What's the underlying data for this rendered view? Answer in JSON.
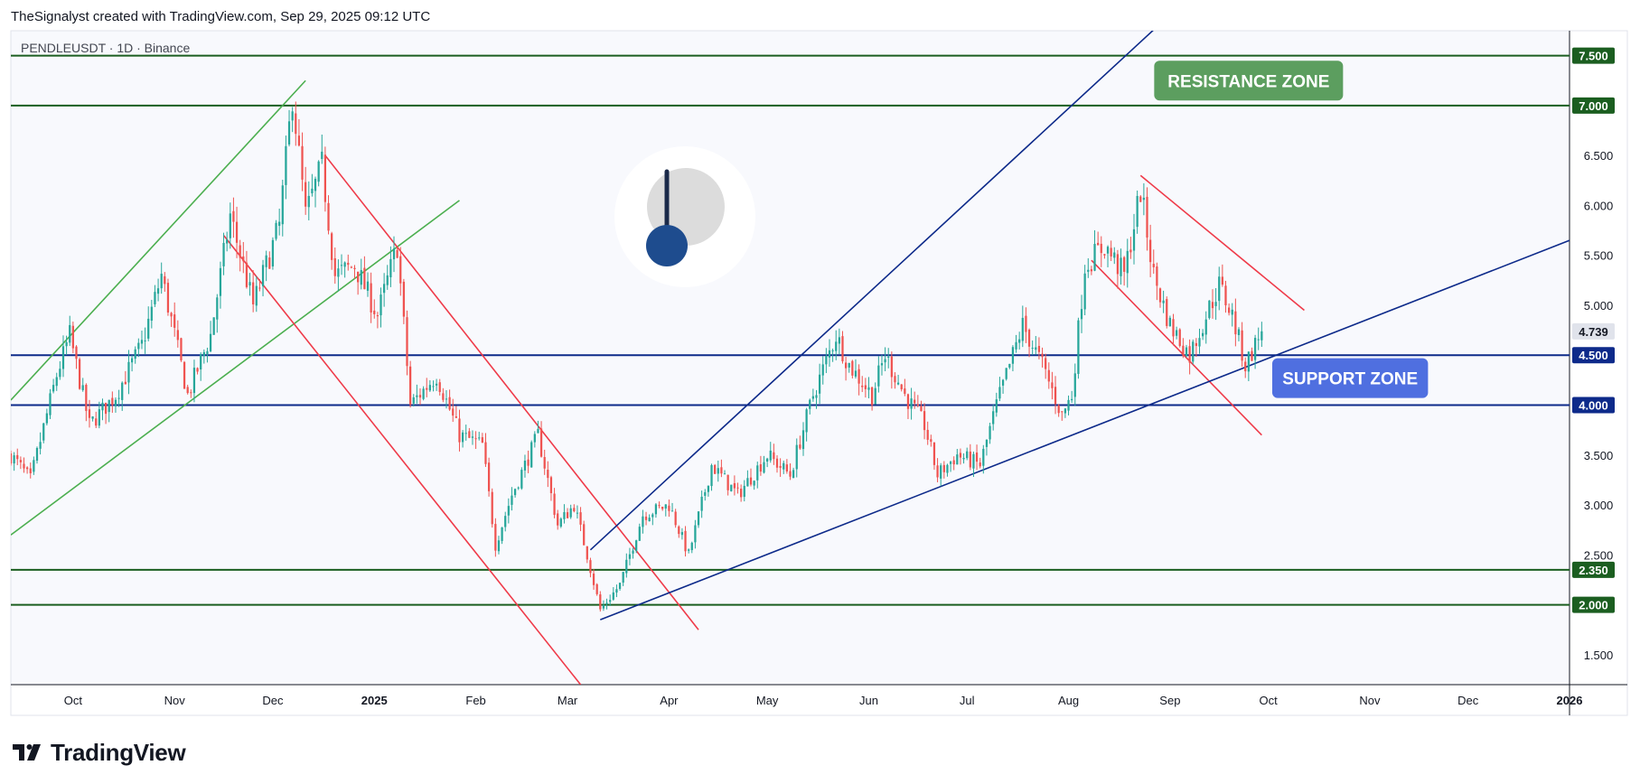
{
  "header": {
    "credit": "TheSignalyst created with TradingView.com, Sep 29, 2025 09:12 UTC"
  },
  "symbol_info": "PENDLEUSDT · 1D · Binance",
  "brand": {
    "name": "TradingView",
    "icon": "tradingview-logo-icon"
  },
  "colors": {
    "resistance_green": "#1b5e20",
    "support_blue": "#0d2a8a",
    "red_channel": "#ef3b4a",
    "green_channel": "#4caf50",
    "resistance_zone_bg": "#5c9e5f",
    "support_zone_bg": "#4f6fe0",
    "candle_up": "#26a69a",
    "candle_down": "#ef5350"
  },
  "chart_data": {
    "type": "candlestick",
    "symbol": "PENDLEUSDT",
    "interval": "1D",
    "exchange": "Binance",
    "ylim": [
      1.2,
      7.75
    ],
    "y_ticks": [
      "1.500",
      "2.500",
      "3.000",
      "3.500",
      "4.000",
      "4.500",
      "5.000",
      "5.500",
      "6.000",
      "6.500",
      "7.000",
      "7.500"
    ],
    "x_ticks": [
      {
        "label": "Oct",
        "date": "2024-10-01"
      },
      {
        "label": "Nov",
        "date": "2024-11-01"
      },
      {
        "label": "Dec",
        "date": "2024-12-01"
      },
      {
        "label": "2025",
        "date": "2025-01-01"
      },
      {
        "label": "Feb",
        "date": "2025-02-01"
      },
      {
        "label": "Mar",
        "date": "2025-03-01"
      },
      {
        "label": "Apr",
        "date": "2025-04-01"
      },
      {
        "label": "May",
        "date": "2025-05-01"
      },
      {
        "label": "Jun",
        "date": "2025-06-01"
      },
      {
        "label": "Jul",
        "date": "2025-07-01"
      },
      {
        "label": "Aug",
        "date": "2025-08-01"
      },
      {
        "label": "Sep",
        "date": "2025-09-01"
      },
      {
        "label": "Oct",
        "date": "2025-10-01"
      },
      {
        "label": "Nov",
        "date": "2025-11-01"
      },
      {
        "label": "Dec",
        "date": "2025-12-01"
      },
      {
        "label": "2026",
        "date": "2026-01-01"
      }
    ],
    "current_price": "4.739",
    "price_path": [
      [
        "2024-09-12",
        3.5
      ],
      [
        "2024-09-18",
        3.25
      ],
      [
        "2024-09-26",
        4.3
      ],
      [
        "2024-09-30",
        4.7
      ],
      [
        "2024-10-06",
        3.8
      ],
      [
        "2024-10-14",
        4.1
      ],
      [
        "2024-10-22",
        4.6
      ],
      [
        "2024-10-28",
        5.3
      ],
      [
        "2024-11-05",
        4.1
      ],
      [
        "2024-11-12",
        4.7
      ],
      [
        "2024-11-18",
        5.9
      ],
      [
        "2024-11-25",
        5.0
      ],
      [
        "2024-12-03",
        5.8
      ],
      [
        "2024-12-07",
        7.1
      ],
      [
        "2024-12-11",
        5.9
      ],
      [
        "2024-12-16",
        6.4
      ],
      [
        "2024-12-20",
        5.3
      ],
      [
        "2024-12-26",
        5.4
      ],
      [
        "2025-01-02",
        4.9
      ],
      [
        "2025-01-08",
        5.6
      ],
      [
        "2025-01-12",
        4.0
      ],
      [
        "2025-01-20",
        4.3
      ],
      [
        "2025-01-27",
        3.7
      ],
      [
        "2025-02-03",
        3.6
      ],
      [
        "2025-02-07",
        2.6
      ],
      [
        "2025-02-12",
        3.1
      ],
      [
        "2025-02-20",
        3.7
      ],
      [
        "2025-02-26",
        2.8
      ],
      [
        "2025-03-03",
        3.0
      ],
      [
        "2025-03-07",
        2.5
      ],
      [
        "2025-03-11",
        1.95
      ],
      [
        "2025-03-17",
        2.2
      ],
      [
        "2025-03-24",
        2.9
      ],
      [
        "2025-04-01",
        3.0
      ],
      [
        "2025-04-07",
        2.5
      ],
      [
        "2025-04-14",
        3.4
      ],
      [
        "2025-04-22",
        3.1
      ],
      [
        "2025-05-01",
        3.5
      ],
      [
        "2025-05-08",
        3.3
      ],
      [
        "2025-05-15",
        4.1
      ],
      [
        "2025-05-22",
        4.7
      ],
      [
        "2025-05-26",
        4.4
      ],
      [
        "2025-06-02",
        4.1
      ],
      [
        "2025-06-06",
        4.5
      ],
      [
        "2025-06-12",
        4.1
      ],
      [
        "2025-06-18",
        3.8
      ],
      [
        "2025-06-22",
        3.3
      ],
      [
        "2025-06-28",
        3.5
      ],
      [
        "2025-07-05",
        3.4
      ],
      [
        "2025-07-10",
        4.0
      ],
      [
        "2025-07-18",
        4.8
      ],
      [
        "2025-07-24",
        4.4
      ],
      [
        "2025-07-30",
        3.9
      ],
      [
        "2025-08-02",
        4.1
      ],
      [
        "2025-08-06",
        5.4
      ],
      [
        "2025-08-12",
        5.6
      ],
      [
        "2025-08-18",
        5.3
      ],
      [
        "2025-08-23",
        6.15
      ],
      [
        "2025-08-27",
        5.3
      ],
      [
        "2025-09-01",
        4.8
      ],
      [
        "2025-09-07",
        4.5
      ],
      [
        "2025-09-12",
        4.9
      ],
      [
        "2025-09-16",
        5.2
      ],
      [
        "2025-09-20",
        4.9
      ],
      [
        "2025-09-24",
        4.4
      ],
      [
        "2025-09-29",
        4.74
      ]
    ],
    "horizontal_levels": [
      {
        "price": 7.5,
        "label": "7.500",
        "color": "#1b5e20"
      },
      {
        "price": 7.0,
        "label": "7.000",
        "color": "#1b5e20"
      },
      {
        "price": 4.5,
        "label": "4.500",
        "color": "#0d2a8a"
      },
      {
        "price": 4.0,
        "label": "4.000",
        "color": "#0d2a8a"
      },
      {
        "price": 2.35,
        "label": "2.350",
        "color": "#1b5e20"
      },
      {
        "price": 2.0,
        "label": "2.000",
        "color": "#1b5e20"
      }
    ],
    "trendlines": [
      {
        "color": "#4caf50",
        "from": [
          "2024-09-12",
          4.05
        ],
        "to": [
          "2024-12-11",
          7.25
        ]
      },
      {
        "color": "#4caf50",
        "from": [
          "2024-09-12",
          2.7
        ],
        "to": [
          "2025-01-27",
          6.05
        ]
      },
      {
        "color": "#ef3b4a",
        "from": [
          "2024-11-16",
          5.7
        ],
        "to": [
          "2025-03-05",
          1.2
        ]
      },
      {
        "color": "#ef3b4a",
        "from": [
          "2024-12-17",
          6.5
        ],
        "to": [
          "2025-04-10",
          1.75
        ]
      },
      {
        "color": "#ef3b4a",
        "from": [
          "2025-08-23",
          6.3
        ],
        "to": [
          "2025-10-12",
          4.95
        ]
      },
      {
        "color": "#ef3b4a",
        "from": [
          "2025-08-08",
          5.45
        ],
        "to": [
          "2025-09-29",
          3.7
        ]
      },
      {
        "color": "#0d2a8a",
        "from": [
          "2025-03-08",
          2.55
        ],
        "to": [
          "2025-08-30",
          7.85
        ]
      },
      {
        "color": "#0d2a8a",
        "from": [
          "2025-03-11",
          1.85
        ],
        "to": [
          "2026-01-01",
          5.65
        ]
      }
    ],
    "annotations": [
      {
        "text": "RESISTANCE ZONE",
        "date": "2025-09-25",
        "price": 7.25,
        "bg": "#5c9e5f"
      },
      {
        "text": "SUPPORT ZONE",
        "date": "2025-10-26",
        "price": 4.27,
        "bg": "#4f6fe0"
      }
    ]
  }
}
